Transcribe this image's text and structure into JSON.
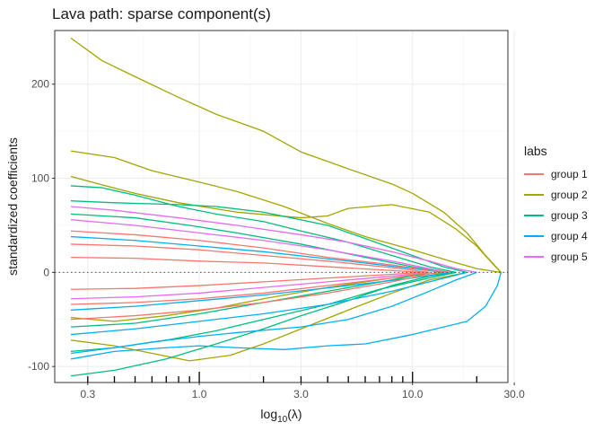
{
  "chart_data": {
    "type": "line",
    "title": "Lava path: sparse component(s)",
    "xlabel_base": "log",
    "xlabel_sub": "10",
    "xlabel_arg": "(λ)",
    "ylabel": "standardized coefficients",
    "x_scale": "log10",
    "xlim": [
      0.21,
      28
    ],
    "ylim": [
      -117,
      257
    ],
    "x_ticks": [
      0.3,
      1.0,
      3.0,
      10.0,
      30.0
    ],
    "x_tick_labels": [
      "0.3",
      "1.0",
      "3.0",
      "10.0",
      "30.0"
    ],
    "y_ticks": [
      -100,
      0,
      100,
      200
    ],
    "y_tick_labels": [
      "-100",
      "0",
      "100",
      "200"
    ],
    "rug_x": [
      0.3,
      0.4,
      0.5,
      0.6,
      0.7,
      0.8,
      0.9,
      1,
      2,
      3,
      4,
      5,
      6,
      7,
      8,
      9,
      10,
      20
    ],
    "reference_line_y": 0,
    "legend": {
      "title": "labs",
      "entries": [
        {
          "label": "group 1",
          "color": "#F8766D"
        },
        {
          "label": "group 2",
          "color": "#A3A500"
        },
        {
          "label": "group 3",
          "color": "#00BF7D"
        },
        {
          "label": "group 4",
          "color": "#00B0F6"
        },
        {
          "label": "group 5",
          "color": "#E76BF3"
        }
      ]
    },
    "series": [
      {
        "name": "group 2",
        "color": "#A3A500",
        "points": [
          [
            0.25,
            249
          ],
          [
            0.35,
            225
          ],
          [
            0.5,
            208
          ],
          [
            0.8,
            186
          ],
          [
            1.2,
            168
          ],
          [
            2,
            150
          ],
          [
            3,
            128
          ],
          [
            5,
            110
          ],
          [
            8,
            94
          ],
          [
            10,
            84
          ],
          [
            14,
            64
          ],
          [
            18,
            42
          ],
          [
            22,
            18
          ],
          [
            26,
            0
          ]
        ]
      },
      {
        "name": "group 2",
        "color": "#A3A500",
        "points": [
          [
            0.25,
            129
          ],
          [
            0.4,
            122
          ],
          [
            0.6,
            108
          ],
          [
            1.0,
            96
          ],
          [
            1.5,
            86
          ],
          [
            2.5,
            70
          ],
          [
            4,
            52
          ],
          [
            6,
            38
          ],
          [
            10,
            24
          ],
          [
            15,
            12
          ],
          [
            20,
            4
          ],
          [
            26,
            0
          ]
        ]
      },
      {
        "name": "group 2",
        "color": "#A3A500",
        "points": [
          [
            0.25,
            102
          ],
          [
            0.35,
            93
          ],
          [
            0.5,
            84
          ],
          [
            0.8,
            74
          ],
          [
            1.5,
            64
          ],
          [
            3,
            58
          ],
          [
            4,
            60
          ],
          [
            5,
            68
          ],
          [
            8,
            72
          ],
          [
            12,
            64
          ],
          [
            16,
            46
          ],
          [
            20,
            28
          ],
          [
            24,
            8
          ],
          [
            26,
            0
          ]
        ]
      },
      {
        "name": "group 2",
        "color": "#A3A500",
        "points": [
          [
            0.25,
            -72
          ],
          [
            0.4,
            -78
          ],
          [
            0.6,
            -86
          ],
          [
            0.9,
            -94
          ],
          [
            1.4,
            -88
          ],
          [
            2,
            -76
          ],
          [
            3,
            -60
          ],
          [
            5,
            -40
          ],
          [
            8,
            -22
          ],
          [
            12,
            -8
          ],
          [
            18,
            0
          ]
        ]
      },
      {
        "name": "group 2",
        "color": "#A3A500",
        "points": [
          [
            0.25,
            -48
          ],
          [
            0.4,
            -52
          ],
          [
            0.7,
            -46
          ],
          [
            1.2,
            -38
          ],
          [
            2,
            -28
          ],
          [
            4,
            -16
          ],
          [
            8,
            -6
          ],
          [
            14,
            0
          ]
        ]
      },
      {
        "name": "group 3",
        "color": "#00BF7D",
        "points": [
          [
            0.25,
            92
          ],
          [
            0.35,
            90
          ],
          [
            0.5,
            82
          ],
          [
            0.8,
            70
          ],
          [
            1.2,
            62
          ],
          [
            2,
            54
          ],
          [
            3,
            44
          ],
          [
            5,
            32
          ],
          [
            8,
            18
          ],
          [
            12,
            6
          ],
          [
            16,
            0
          ]
        ]
      },
      {
        "name": "group 3",
        "color": "#00BF7D",
        "points": [
          [
            0.25,
            76
          ],
          [
            0.4,
            74
          ],
          [
            0.8,
            72
          ],
          [
            1.2,
            70
          ],
          [
            2,
            64
          ],
          [
            4,
            50
          ],
          [
            6,
            36
          ],
          [
            10,
            18
          ],
          [
            14,
            6
          ],
          [
            18,
            0
          ]
        ]
      },
      {
        "name": "group 3",
        "color": "#00BF7D",
        "points": [
          [
            0.25,
            -110
          ],
          [
            0.4,
            -104
          ],
          [
            0.7,
            -92
          ],
          [
            1.2,
            -76
          ],
          [
            2,
            -60
          ],
          [
            3,
            -46
          ],
          [
            5,
            -30
          ],
          [
            8,
            -14
          ],
          [
            12,
            -4
          ],
          [
            16,
            0
          ]
        ]
      },
      {
        "name": "group 3",
        "color": "#00BF7D",
        "points": [
          [
            0.25,
            -84
          ],
          [
            0.4,
            -80
          ],
          [
            0.7,
            -72
          ],
          [
            1.2,
            -62
          ],
          [
            2,
            -50
          ],
          [
            4,
            -34
          ],
          [
            7,
            -18
          ],
          [
            12,
            -6
          ],
          [
            16,
            0
          ]
        ]
      },
      {
        "name": "group 3",
        "color": "#00BF7D",
        "points": [
          [
            0.25,
            62
          ],
          [
            0.5,
            58
          ],
          [
            0.9,
            50
          ],
          [
            1.5,
            42
          ],
          [
            3,
            30
          ],
          [
            6,
            16
          ],
          [
            10,
            6
          ],
          [
            14,
            0
          ]
        ]
      },
      {
        "name": "group 3",
        "color": "#00BF7D",
        "points": [
          [
            0.25,
            -58
          ],
          [
            0.5,
            -54
          ],
          [
            1,
            -44
          ],
          [
            2,
            -32
          ],
          [
            4,
            -20
          ],
          [
            8,
            -8
          ],
          [
            12,
            0
          ]
        ]
      },
      {
        "name": "group 4",
        "color": "#00B0F6",
        "points": [
          [
            0.25,
            -92
          ],
          [
            0.4,
            -84
          ],
          [
            0.7,
            -80
          ],
          [
            1.0,
            -78
          ],
          [
            1.5,
            -80
          ],
          [
            2.5,
            -82
          ],
          [
            4,
            -78
          ],
          [
            6,
            -76
          ],
          [
            10,
            -66
          ],
          [
            14,
            -58
          ],
          [
            18,
            -52
          ],
          [
            22,
            -36
          ],
          [
            25,
            -14
          ],
          [
            26,
            0
          ]
        ]
      },
      {
        "name": "group 4",
        "color": "#00B0F6",
        "points": [
          [
            0.25,
            -86
          ],
          [
            0.4,
            -80
          ],
          [
            0.6,
            -74
          ],
          [
            1.0,
            -68
          ],
          [
            1.5,
            -64
          ],
          [
            3,
            -58
          ],
          [
            5,
            -50
          ],
          [
            8,
            -36
          ],
          [
            12,
            -20
          ],
          [
            16,
            -8
          ],
          [
            20,
            0
          ]
        ]
      },
      {
        "name": "group 4",
        "color": "#00B0F6",
        "points": [
          [
            0.25,
            -66
          ],
          [
            0.5,
            -60
          ],
          [
            1,
            -52
          ],
          [
            2,
            -44
          ],
          [
            4,
            -34
          ],
          [
            8,
            -20
          ],
          [
            12,
            -10
          ],
          [
            18,
            0
          ]
        ]
      },
      {
        "name": "group 4",
        "color": "#00B0F6",
        "points": [
          [
            0.25,
            -40
          ],
          [
            0.5,
            -36
          ],
          [
            1,
            -30
          ],
          [
            2,
            -24
          ],
          [
            5,
            -14
          ],
          [
            10,
            -6
          ],
          [
            15,
            0
          ]
        ]
      },
      {
        "name": "group 4",
        "color": "#00B0F6",
        "points": [
          [
            0.25,
            38
          ],
          [
            0.5,
            34
          ],
          [
            1,
            28
          ],
          [
            2,
            22
          ],
          [
            5,
            12
          ],
          [
            10,
            4
          ],
          [
            14,
            0
          ]
        ]
      },
      {
        "name": "group 5",
        "color": "#E76BF3",
        "points": [
          [
            0.25,
            70
          ],
          [
            0.4,
            66
          ],
          [
            0.8,
            58
          ],
          [
            1.5,
            50
          ],
          [
            3,
            40
          ],
          [
            5,
            32
          ],
          [
            8,
            22
          ],
          [
            12,
            12
          ],
          [
            16,
            4
          ],
          [
            20,
            0
          ]
        ]
      },
      {
        "name": "group 5",
        "color": "#E76BF3",
        "points": [
          [
            0.25,
            56
          ],
          [
            0.5,
            50
          ],
          [
            1,
            42
          ],
          [
            2,
            34
          ],
          [
            4,
            24
          ],
          [
            8,
            12
          ],
          [
            12,
            4
          ],
          [
            15,
            0
          ]
        ]
      },
      {
        "name": "group 5",
        "color": "#E76BF3",
        "points": [
          [
            0.25,
            -28
          ],
          [
            0.5,
            -26
          ],
          [
            1,
            -22
          ],
          [
            2,
            -16
          ],
          [
            4,
            -10
          ],
          [
            8,
            -4
          ],
          [
            12,
            0
          ]
        ]
      },
      {
        "name": "group 1",
        "color": "#F8766D",
        "points": [
          [
            0.25,
            44
          ],
          [
            0.5,
            40
          ],
          [
            1,
            34
          ],
          [
            2,
            26
          ],
          [
            4,
            16
          ],
          [
            8,
            8
          ],
          [
            12,
            2
          ],
          [
            15,
            0
          ]
        ]
      },
      {
        "name": "group 1",
        "color": "#F8766D",
        "points": [
          [
            0.25,
            30
          ],
          [
            0.5,
            28
          ],
          [
            1,
            24
          ],
          [
            2,
            18
          ],
          [
            4,
            12
          ],
          [
            8,
            5
          ],
          [
            12,
            0
          ]
        ]
      },
      {
        "name": "group 1",
        "color": "#F8766D",
        "points": [
          [
            0.25,
            16
          ],
          [
            0.5,
            15
          ],
          [
            1,
            12
          ],
          [
            2,
            10
          ],
          [
            4,
            6
          ],
          [
            8,
            2
          ],
          [
            11,
            0
          ]
        ]
      },
      {
        "name": "group 1",
        "color": "#F8766D",
        "points": [
          [
            0.25,
            -18
          ],
          [
            0.5,
            -17
          ],
          [
            1,
            -14
          ],
          [
            2,
            -10
          ],
          [
            4,
            -6
          ],
          [
            8,
            -2
          ],
          [
            11,
            0
          ]
        ]
      },
      {
        "name": "group 1",
        "color": "#F8766D",
        "points": [
          [
            0.25,
            -34
          ],
          [
            0.5,
            -32
          ],
          [
            1,
            -28
          ],
          [
            2,
            -22
          ],
          [
            4,
            -14
          ],
          [
            8,
            -6
          ],
          [
            12,
            0
          ]
        ]
      },
      {
        "name": "group 1",
        "color": "#F8766D",
        "points": [
          [
            0.25,
            -50
          ],
          [
            0.5,
            -46
          ],
          [
            1,
            -40
          ],
          [
            2,
            -32
          ],
          [
            4,
            -22
          ],
          [
            8,
            -10
          ],
          [
            13,
            0
          ]
        ]
      }
    ]
  }
}
